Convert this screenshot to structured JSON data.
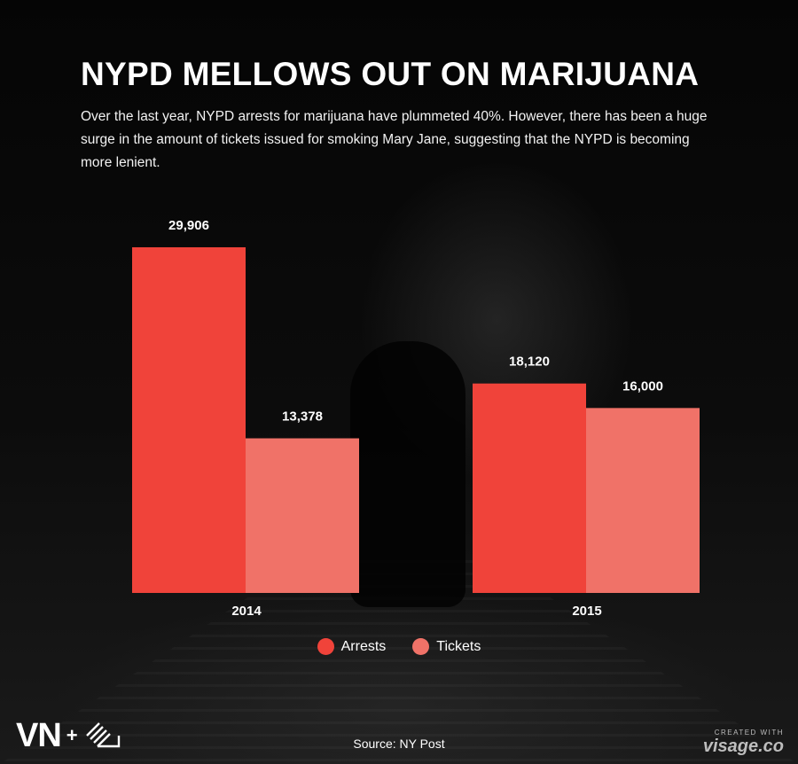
{
  "title": "NYPD MELLOWS OUT ON MARIJUANA",
  "subtitle": "Over the last year, NYPD arrests for marijuana have plummeted 40%. However, there has been a huge surge in the amount of tickets issued for smoking Mary Jane, suggesting that the NYPD is becoming more lenient.",
  "source": "Source: NY Post",
  "logo": {
    "brand": "VN",
    "plus": "+"
  },
  "credit": {
    "small": "CREATED WITH",
    "brand": "visage.co"
  },
  "colors": {
    "arrests": "#f0433a",
    "tickets": "#f07268",
    "text": "#ffffff"
  },
  "chart_data": {
    "type": "bar",
    "title": "NYPD MELLOWS OUT ON MARIJUANA",
    "categories": [
      "2014",
      "2015"
    ],
    "series": [
      {
        "name": "Arrests",
        "values": [
          29906,
          18120
        ],
        "labels": [
          "29,906",
          "18,120"
        ],
        "color": "#f0433a"
      },
      {
        "name": "Tickets",
        "values": [
          13378,
          16000
        ],
        "labels": [
          "13,378",
          "16,000"
        ],
        "color": "#f07268"
      }
    ],
    "xlabel": "",
    "ylabel": "",
    "ylim": [
      0,
      29906
    ],
    "grid": false,
    "legend": "bottom"
  }
}
